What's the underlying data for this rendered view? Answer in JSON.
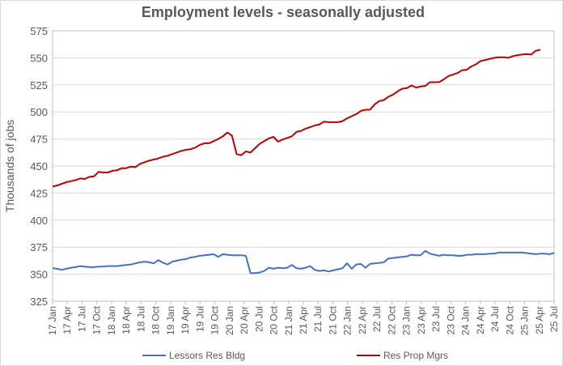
{
  "chart_data": {
    "type": "line",
    "title": "Employment levels - seasonally adjusted",
    "xlabel": "",
    "ylabel": "Thousands of jobs",
    "ylim": [
      325,
      575
    ],
    "yticks": [
      325,
      350,
      375,
      400,
      425,
      450,
      475,
      500,
      525,
      550,
      575
    ],
    "grid": "horizontal",
    "legend_position": "bottom",
    "x_tick_labels": [
      "17 Jan",
      "17 Apr",
      "17 Jul",
      "17 Oct",
      "18 Jan",
      "18 Apr",
      "18 Jul",
      "18 Oct",
      "19 Jan",
      "19 Apr",
      "19 Jul",
      "19 Oct",
      "20 Jan",
      "20 Apr",
      "20 Jul",
      "20 Oct",
      "21 Jan",
      "21 Apr",
      "21 Jul",
      "21 Oct",
      "22 Jan",
      "22 Apr",
      "22 Jul",
      "22 Oct",
      "23 Jan",
      "23 Apr",
      "23 Jul",
      "23 Oct",
      "24 Jan",
      "24 Apr",
      "24 Jul",
      "24 Oct",
      "25 Jan",
      "25 Apr",
      "25 Jul"
    ],
    "series": [
      {
        "name": "Lessors Res Bldg",
        "color": "#4472c4",
        "values": [
          355.5,
          355,
          354,
          355,
          356,
          356.5,
          357.5,
          357,
          356.5,
          356.5,
          357,
          357,
          357.5,
          357.5,
          357.5,
          358,
          358.5,
          359,
          360,
          361,
          361.5,
          361,
          360,
          363,
          360.5,
          359,
          361.5,
          362.5,
          363.5,
          364,
          365.5,
          366,
          367,
          367.5,
          368,
          368.5,
          366,
          368.5,
          368,
          367.5,
          367.5,
          367.5,
          367,
          351,
          351,
          351.5,
          353,
          356,
          355,
          356,
          355.5,
          356,
          358.5,
          355.5,
          355,
          356,
          357.5,
          354,
          353,
          353.5,
          352.5,
          353.5,
          354.5,
          355.5,
          360,
          355,
          359,
          359.5,
          356,
          359.5,
          360,
          360.5,
          361,
          364.5,
          365,
          365.5,
          366,
          366.5,
          368,
          367.5,
          367.5,
          371.5,
          369,
          368,
          367,
          368,
          367.5,
          367.5,
          367,
          367,
          368,
          368,
          368.5,
          368.5,
          368.5,
          369,
          369,
          370,
          370,
          370,
          370,
          370,
          370,
          369.5,
          369,
          368.5,
          369,
          369,
          368.5,
          369.5
        ]
      },
      {
        "name": "Res Prop Mgrs",
        "color": "#c00000",
        "values": [
          431,
          432,
          433.5,
          435,
          436,
          437,
          438.5,
          438,
          440,
          440.5,
          444.5,
          444,
          444,
          445.5,
          446,
          448,
          448,
          449.5,
          449,
          452,
          453.5,
          455,
          456,
          457,
          458.5,
          459.5,
          461,
          462.5,
          464,
          465,
          465.5,
          467,
          469.5,
          471,
          471,
          473,
          475,
          477.5,
          481,
          478,
          461,
          460,
          463.5,
          462.5,
          466.5,
          470.5,
          473,
          475.5,
          477,
          472.5,
          474.5,
          476,
          477.5,
          481.5,
          482.5,
          484.5,
          486,
          487.5,
          488.5,
          491,
          490.5,
          490.5,
          490.5,
          491.5,
          494,
          496,
          498,
          501,
          502,
          502,
          507,
          510,
          511,
          514,
          516,
          519,
          521.5,
          522,
          524.5,
          522.5,
          523.5,
          524,
          527.5,
          527.5,
          527.5,
          530,
          533,
          534.5,
          536,
          538.5,
          539,
          542,
          544,
          547,
          548,
          549,
          550,
          550.5,
          550.5,
          550,
          551.5,
          552.5,
          553,
          553.5,
          553,
          556.5,
          557.5
        ]
      }
    ]
  }
}
